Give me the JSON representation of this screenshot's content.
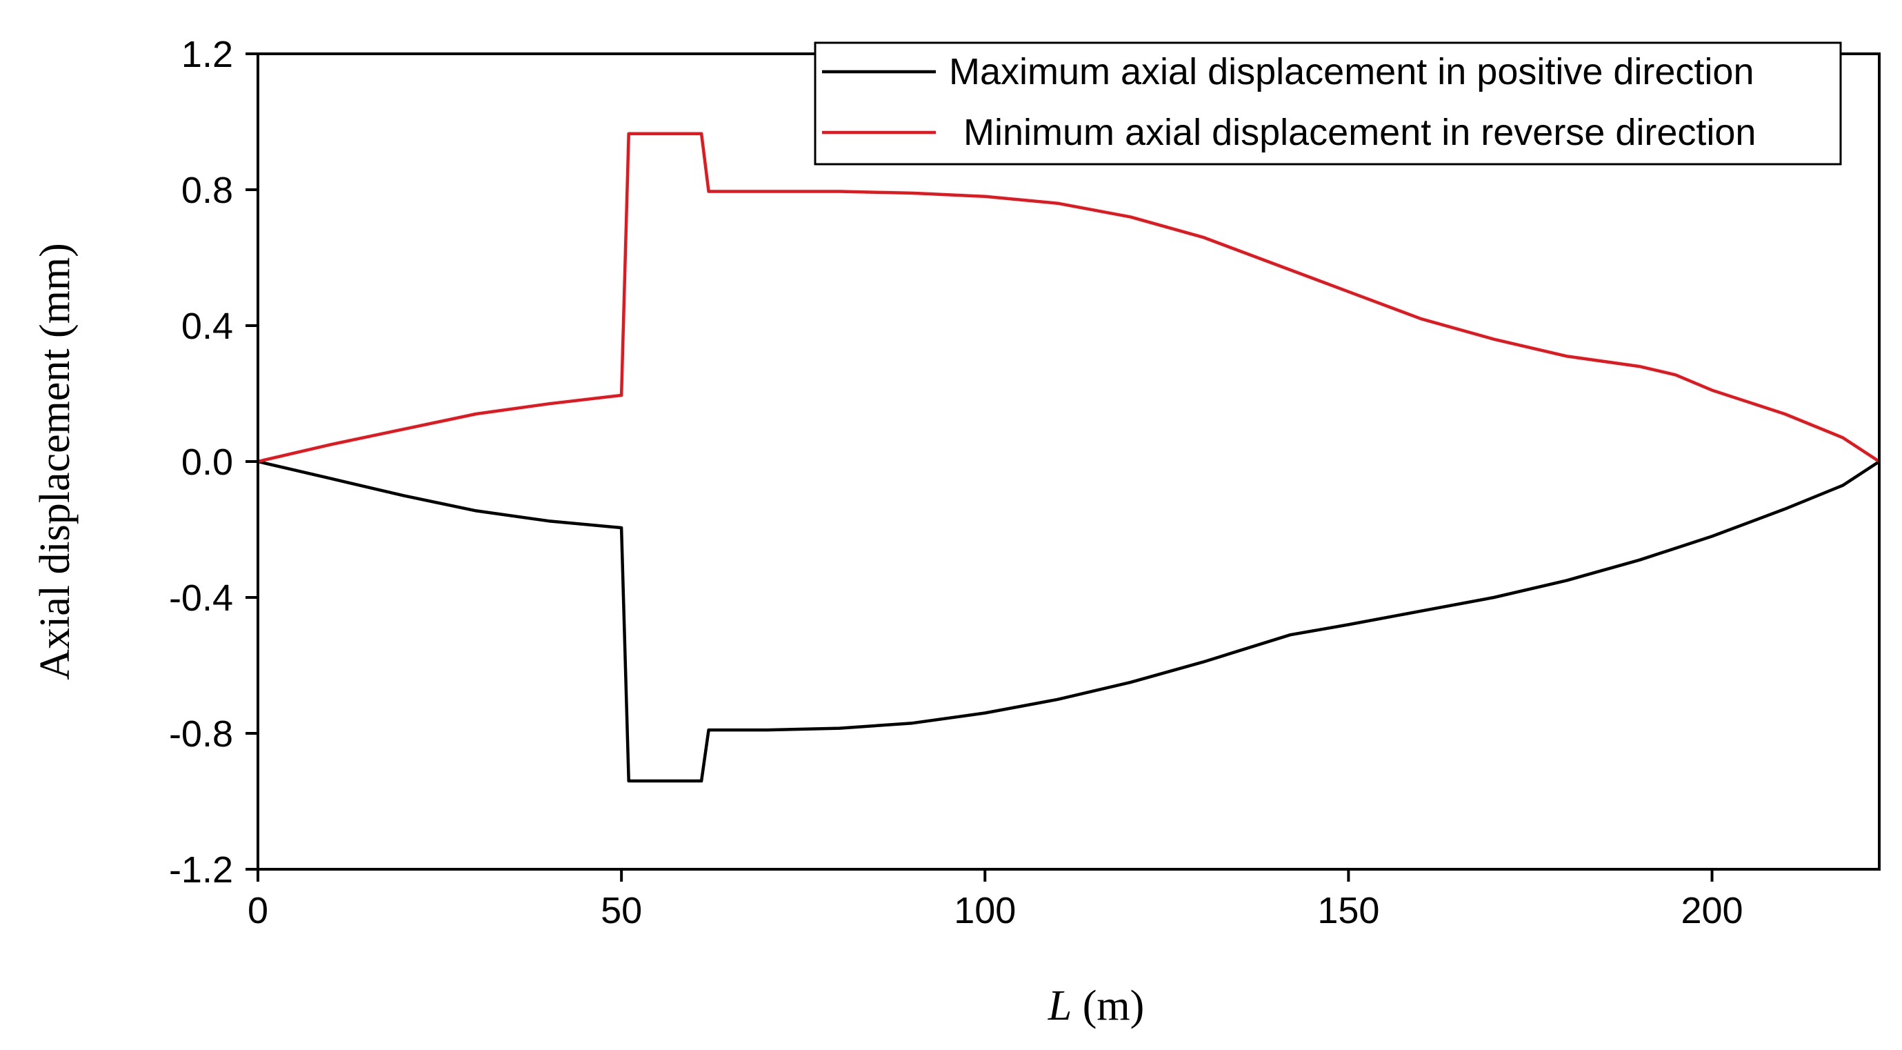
{
  "chart_data": {
    "type": "line",
    "title": "",
    "xlabel_italic": "L",
    "xlabel_unit": " (m)",
    "ylabel": "Axial displacement (mm)",
    "xlim": [
      0,
      223
    ],
    "ylim": [
      -1.2,
      1.2
    ],
    "xticks": [
      0,
      50,
      100,
      150,
      200
    ],
    "yticks": [
      1.2,
      0.8,
      0.4,
      0.0,
      -0.4,
      -0.8,
      -1.2
    ],
    "ytick_labels": [
      "1.2",
      "0.8",
      "0.4",
      "0.0",
      "-0.4",
      "-0.8",
      "-1.2"
    ],
    "xtick_labels": [
      "0",
      "50",
      "100",
      "150",
      "200"
    ],
    "grid": false,
    "legend_position": "top-right",
    "series": [
      {
        "name": "Maximum axial displacement in positive direction",
        "color": "#000000",
        "x": [
          0,
          10,
          20,
          30,
          40,
          50,
          51,
          52,
          56,
          61,
          62,
          70,
          80,
          90,
          100,
          110,
          120,
          130,
          142,
          150,
          160,
          170,
          180,
          190,
          200,
          210,
          218,
          223
        ],
        "y": [
          0,
          -0.05,
          -0.1,
          -0.145,
          -0.175,
          -0.195,
          -0.94,
          -0.94,
          -0.94,
          -0.94,
          -0.79,
          -0.79,
          -0.785,
          -0.77,
          -0.74,
          -0.7,
          -0.65,
          -0.59,
          -0.51,
          -0.48,
          -0.44,
          -0.4,
          -0.35,
          -0.29,
          -0.22,
          -0.14,
          -0.07,
          0.0
        ]
      },
      {
        "name": "Minimum axial displacement in reverse direction",
        "color": "#e3171e",
        "x": [
          0,
          10,
          20,
          30,
          40,
          50,
          51,
          52,
          56,
          61,
          62,
          70,
          80,
          90,
          100,
          110,
          120,
          130,
          140,
          150,
          160,
          170,
          180,
          190,
          195,
          200,
          210,
          218,
          223
        ],
        "y": [
          0,
          0.05,
          0.095,
          0.14,
          0.17,
          0.195,
          0.965,
          0.965,
          0.965,
          0.965,
          0.795,
          0.795,
          0.795,
          0.79,
          0.78,
          0.76,
          0.72,
          0.66,
          0.58,
          0.5,
          0.42,
          0.36,
          0.31,
          0.28,
          0.255,
          0.21,
          0.14,
          0.07,
          0.0
        ]
      }
    ]
  }
}
